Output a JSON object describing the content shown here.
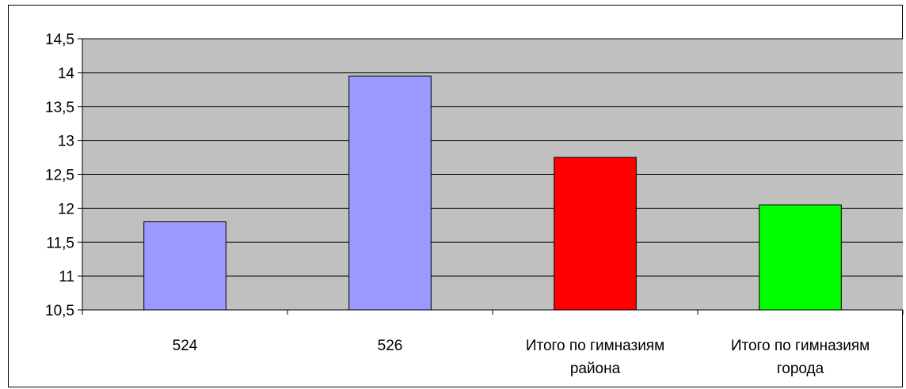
{
  "chart_data": {
    "type": "bar",
    "categories": [
      [
        "524"
      ],
      [
        "526"
      ],
      [
        "Итого по гимназиям",
        "района"
      ],
      [
        "Итого по гимназиям",
        "города"
      ]
    ],
    "values": [
      11.8,
      13.95,
      12.75,
      12.05
    ],
    "bar_colors": [
      "#9999ff",
      "#9999ff",
      "#ff0000",
      "#00ff00"
    ],
    "ylim": [
      10.5,
      14.5
    ],
    "yticks": [
      "14,5",
      "14",
      "13,5",
      "13",
      "12,5",
      "12",
      "11,5",
      "11",
      "10,5"
    ],
    "grid": true,
    "legend": "none",
    "plot_background": "#c0c0c0"
  }
}
